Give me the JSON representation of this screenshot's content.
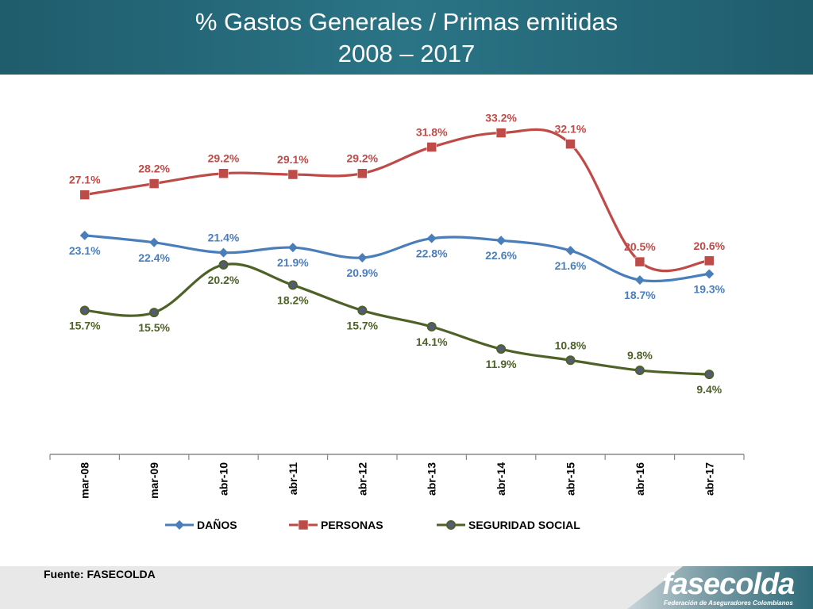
{
  "header": {
    "title_line1": "% Gastos Generales / Primas emitidas",
    "title_line2": "2008 – 2017"
  },
  "footer": {
    "source": "Fuente: FASECOLDA",
    "logo_text": "fasecolda",
    "logo_subtext": "Federación de Aseguradores Colombianos"
  },
  "chart_data": {
    "type": "line",
    "categories": [
      "mar-08",
      "mar-09",
      "abr-10",
      "abr-11",
      "abr-12",
      "abr-13",
      "abr-14",
      "abr-15",
      "abr-16",
      "abr-17"
    ],
    "ylim": [
      0,
      40
    ],
    "grid": false,
    "legend_position": "bottom",
    "series": [
      {
        "name": "DAÑOS",
        "color": "#4a7ebb",
        "marker": "diamond",
        "values": [
          23.1,
          22.4,
          21.4,
          21.9,
          20.9,
          22.8,
          22.6,
          21.6,
          18.7,
          19.3
        ],
        "labels": [
          "23.1%",
          "22.4%",
          "21.4%",
          "21.9%",
          "20.9%",
          "22.8%",
          "22.6%",
          "21.6%",
          "18.7%",
          "19.3%"
        ]
      },
      {
        "name": "PERSONAS",
        "color": "#be4b48",
        "marker": "square",
        "values": [
          27.1,
          28.2,
          29.2,
          29.1,
          29.2,
          31.8,
          33.2,
          32.1,
          20.5,
          20.6
        ],
        "labels": [
          "27.1%",
          "28.2%",
          "29.2%",
          "29.1%",
          "29.2%",
          "31.8%",
          "33.2%",
          "32.1%",
          "20.5%",
          "20.6%"
        ]
      },
      {
        "name": "SEGURIDAD SOCIAL",
        "color": "#4e6228",
        "marker": "circle",
        "values": [
          15.7,
          15.5,
          20.2,
          18.2,
          15.7,
          14.1,
          11.9,
          10.8,
          9.8,
          9.4
        ],
        "labels": [
          "15.7%",
          "15.5%",
          "20.2%",
          "18.2%",
          "15.7%",
          "14.1%",
          "11.9%",
          "10.8%",
          "9.8%",
          "9.4%"
        ]
      }
    ]
  }
}
